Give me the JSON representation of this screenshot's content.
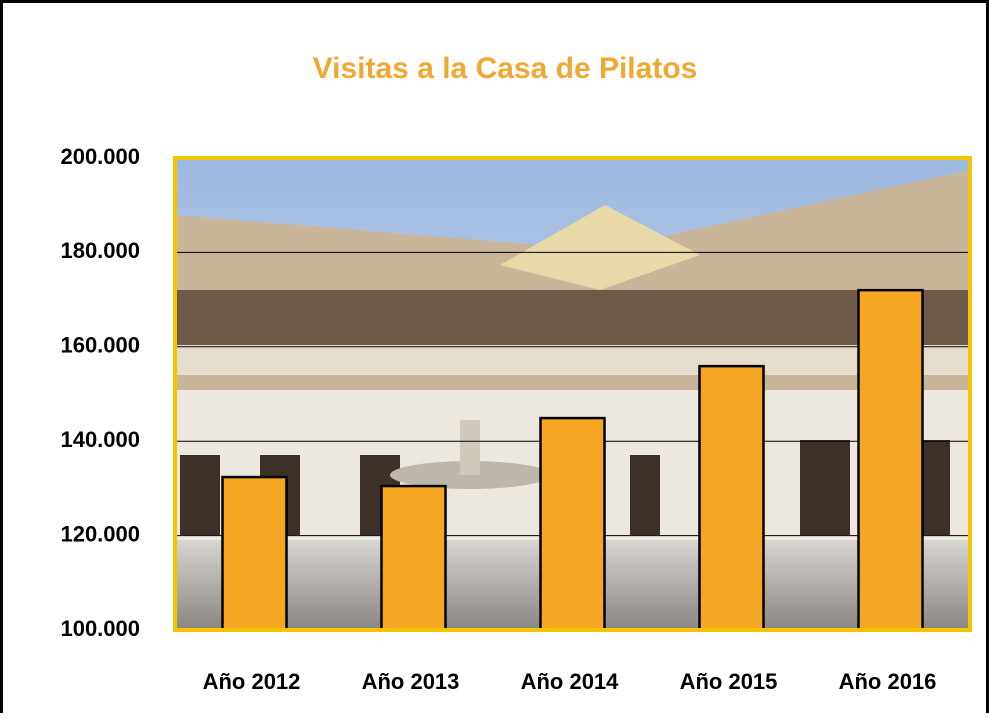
{
  "chart_data": {
    "type": "bar",
    "title": "Visitas a la Casa de Pilatos",
    "categories": [
      "Año 2012",
      "Año 2013",
      "Año 2014",
      "Año 2015",
      "Año 2016"
    ],
    "values": [
      132400,
      130500,
      144900,
      155900,
      172000
    ],
    "color": "#f5a623",
    "ylim": [
      100000,
      200000
    ],
    "yticks": [
      {
        "value": 100000,
        "label": "100.000"
      },
      {
        "value": 120000,
        "label": "120.000"
      },
      {
        "value": 140000,
        "label": "140.000"
      },
      {
        "value": 160000,
        "label": "160.000"
      },
      {
        "value": 180000,
        "label": "180.000"
      },
      {
        "value": 200000,
        "label": "200.000"
      }
    ],
    "grid": true
  }
}
